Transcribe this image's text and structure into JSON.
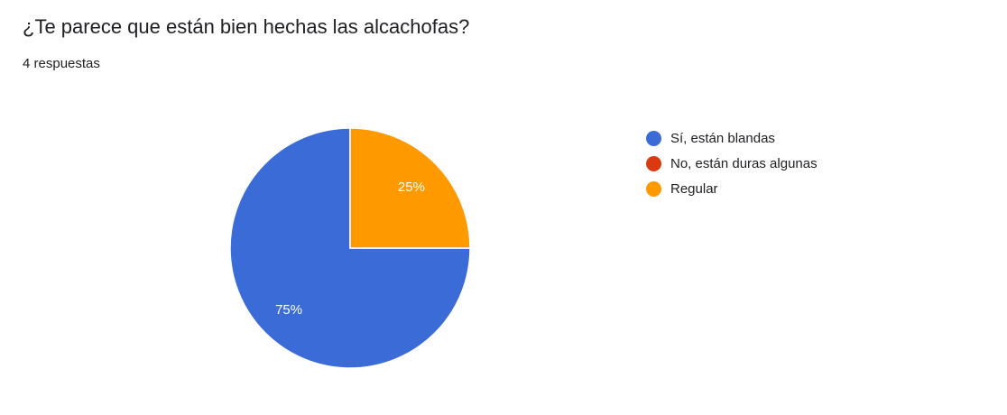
{
  "header": {
    "title": "¿Te parece que están bien hechas las alcachofas?",
    "subtitle": "4 respuestas"
  },
  "chart_data": {
    "type": "pie",
    "title": "¿Te parece que están bien hechas las alcachofas?",
    "subtitle": "4 respuestas",
    "legend_position": "right",
    "background": "#FFFFFF",
    "text_color": "#202124",
    "slice_label_color": "#FFFFFF",
    "start_angle_deg": -90,
    "direction": "counterclockwise",
    "slices": [
      {
        "label": "Sí, están blandas",
        "percent": 75,
        "display_label": "75%",
        "color": "#3B6BD6"
      },
      {
        "label": "No, están duras algunas",
        "percent": 0,
        "display_label": "",
        "color": "#DC3912"
      },
      {
        "label": "Regular",
        "percent": 25,
        "display_label": "25%",
        "color": "#FF9900"
      }
    ]
  }
}
